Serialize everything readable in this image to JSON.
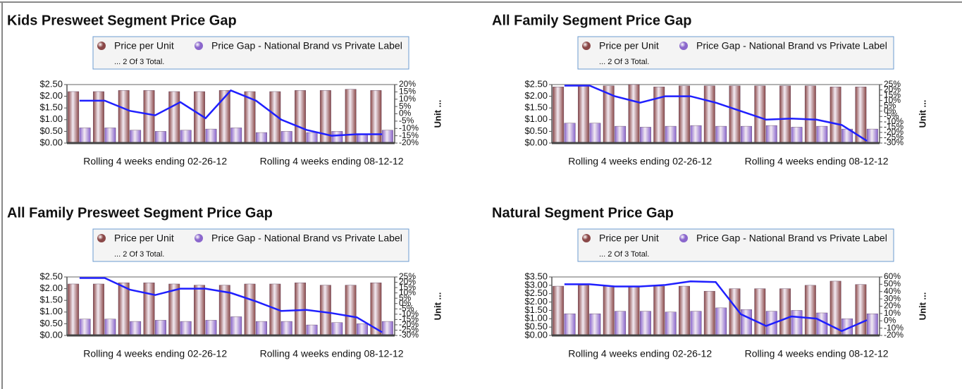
{
  "chart_data": [
    {
      "type": "bar",
      "title": "Kids Presweet Segment Price Gap",
      "legend_note": "... 2 Of 3 Total.",
      "y2label": "Unit ...",
      "categories": [
        null,
        null,
        null,
        "Rolling 4 weeks ending 02-26-12",
        null,
        null,
        null,
        null,
        null,
        null,
        "Rolling 4 weeks ending 08-12-12",
        null,
        null
      ],
      "series": [
        {
          "name": "Price per Unit",
          "color": "#8a4848",
          "values": [
            2.2,
            2.2,
            2.25,
            2.25,
            2.2,
            2.2,
            2.25,
            2.2,
            2.2,
            2.25,
            2.25,
            2.3,
            2.25
          ]
        },
        {
          "name": "Price Gap - National Brand vs Private Label",
          "color": "#8a66cc",
          "values": [
            0.65,
            0.65,
            0.55,
            0.5,
            0.55,
            0.6,
            0.65,
            0.45,
            0.5,
            0.45,
            0.5,
            0.4,
            0.55
          ]
        },
        {
          "type": "line",
          "axis": "y2",
          "color": "#1f1fff",
          "values": [
            9,
            9,
            2,
            -1,
            8,
            -3,
            16,
            9,
            -4,
            -11,
            -15,
            -14,
            -14
          ]
        }
      ],
      "ylim": [
        0,
        2.5
      ],
      "yticks": [
        {
          "value": 0,
          "label": "$0.00"
        },
        {
          "value": 0.5,
          "label": "$0.50"
        },
        {
          "value": 1,
          "label": "$1.00"
        },
        {
          "value": 1.5,
          "label": "$1.50"
        },
        {
          "value": 2,
          "label": "$2.00"
        },
        {
          "value": 2.5,
          "label": "$2.50"
        }
      ],
      "y2lim": [
        -20,
        20
      ],
      "y2ticks": [
        {
          "value": -20,
          "label": "-20%"
        },
        {
          "value": -15,
          "label": "-15%"
        },
        {
          "value": -10,
          "label": "-10%"
        },
        {
          "value": -5,
          "label": "-5%"
        },
        {
          "value": 0,
          "label": "0%"
        },
        {
          "value": 5,
          "label": "5%"
        },
        {
          "value": 10,
          "label": "10%"
        },
        {
          "value": 15,
          "label": "15%"
        },
        {
          "value": 20,
          "label": "20%"
        }
      ]
    },
    {
      "type": "bar",
      "title": "All Family Segment Price Gap",
      "legend_note": "... 2 Of 3 Total.",
      "y2label": "Unit ...",
      "categories": [
        null,
        null,
        null,
        "Rolling 4 weeks ending 02-26-12",
        null,
        null,
        null,
        null,
        null,
        null,
        "Rolling 4 weeks ending 08-12-12",
        null,
        null
      ],
      "series": [
        {
          "name": "Price per Unit",
          "color": "#8a4848",
          "values": [
            2.4,
            2.45,
            2.45,
            2.5,
            2.4,
            2.45,
            2.45,
            2.45,
            2.45,
            2.45,
            2.45,
            2.4,
            2.4
          ]
        },
        {
          "name": "Price Gap - National Brand vs Private Label",
          "color": "#8a66cc",
          "values": [
            0.85,
            0.85,
            0.72,
            0.68,
            0.72,
            0.75,
            0.72,
            0.72,
            0.75,
            0.68,
            0.72,
            0.6,
            0.6
          ]
        },
        {
          "type": "line",
          "axis": "y2",
          "color": "#1f1fff",
          "values": [
            24,
            24,
            14,
            8,
            14,
            14,
            8,
            0,
            -8,
            -7,
            -8,
            -13,
            -28
          ]
        }
      ],
      "ylim": [
        0,
        2.5
      ],
      "yticks": [
        {
          "value": 0,
          "label": "$0.00"
        },
        {
          "value": 0.5,
          "label": "$0.50"
        },
        {
          "value": 1,
          "label": "$1.00"
        },
        {
          "value": 1.5,
          "label": "$1.50"
        },
        {
          "value": 2,
          "label": "$2.00"
        },
        {
          "value": 2.5,
          "label": "$2.50"
        }
      ],
      "y2lim": [
        -30,
        25
      ],
      "y2ticks": [
        {
          "value": -30,
          "label": "-30%"
        },
        {
          "value": -25,
          "label": "-25%"
        },
        {
          "value": -20,
          "label": "-20%"
        },
        {
          "value": -15,
          "label": "-15%"
        },
        {
          "value": -10,
          "label": "-10%"
        },
        {
          "value": -5,
          "label": "-5%"
        },
        {
          "value": 0,
          "label": "0%"
        },
        {
          "value": 5,
          "label": "5%"
        },
        {
          "value": 10,
          "label": "10%"
        },
        {
          "value": 15,
          "label": "15%"
        },
        {
          "value": 20,
          "label": "20%"
        },
        {
          "value": 25,
          "label": "25%"
        }
      ]
    },
    {
      "type": "bar",
      "title": "All Family Presweet Segment Price Gap",
      "legend_note": "... 2 Of 3 Total.",
      "y2label": "Unit ...",
      "categories": [
        null,
        null,
        null,
        "Rolling 4 weeks ending 02-26-12",
        null,
        null,
        null,
        null,
        null,
        null,
        "Rolling 4 weeks ending 08-12-12",
        null,
        null
      ],
      "series": [
        {
          "name": "Price per Unit",
          "color": "#8a4848",
          "values": [
            2.2,
            2.2,
            2.25,
            2.25,
            2.2,
            2.15,
            2.15,
            2.2,
            2.2,
            2.25,
            2.15,
            2.15,
            2.25
          ]
        },
        {
          "name": "Price Gap - National Brand vs Private Label",
          "color": "#8a66cc",
          "values": [
            0.7,
            0.7,
            0.6,
            0.65,
            0.6,
            0.65,
            0.8,
            0.6,
            0.6,
            0.45,
            0.55,
            0.5,
            0.6
          ]
        },
        {
          "type": "line",
          "axis": "y2",
          "color": "#1f1fff",
          "values": [
            24,
            24,
            13,
            8,
            14,
            14,
            10,
            2,
            -7,
            -6,
            -9,
            -13,
            -27
          ]
        }
      ],
      "ylim": [
        0,
        2.5
      ],
      "yticks": [
        {
          "value": 0,
          "label": "$0.00"
        },
        {
          "value": 0.5,
          "label": "$0.50"
        },
        {
          "value": 1,
          "label": "$1.00"
        },
        {
          "value": 1.5,
          "label": "$1.50"
        },
        {
          "value": 2,
          "label": "$2.00"
        },
        {
          "value": 2.5,
          "label": "$2.50"
        }
      ],
      "y2lim": [
        -30,
        25
      ],
      "y2ticks": [
        {
          "value": -30,
          "label": "-30%"
        },
        {
          "value": -25,
          "label": "-25%"
        },
        {
          "value": -20,
          "label": "-20%"
        },
        {
          "value": -15,
          "label": "-15%"
        },
        {
          "value": -10,
          "label": "-10%"
        },
        {
          "value": -5,
          "label": "-5%"
        },
        {
          "value": 0,
          "label": "0%"
        },
        {
          "value": 5,
          "label": "5%"
        },
        {
          "value": 10,
          "label": "10%"
        },
        {
          "value": 15,
          "label": "15%"
        },
        {
          "value": 20,
          "label": "20%"
        },
        {
          "value": 25,
          "label": "25%"
        }
      ]
    },
    {
      "type": "bar",
      "title": "Natural Segment Price Gap",
      "legend_note": "... 2 Of 3 Total.",
      "y2label": "Unit ...",
      "categories": [
        null,
        null,
        null,
        "Rolling 4 weeks ending 02-26-12",
        null,
        null,
        null,
        null,
        null,
        null,
        "Rolling 4 weeks ending 08-12-12",
        null,
        null
      ],
      "series": [
        {
          "name": "Price per Unit",
          "color": "#8a4848",
          "values": [
            2.95,
            3.0,
            2.95,
            2.95,
            2.95,
            2.95,
            2.65,
            2.8,
            2.8,
            2.8,
            3.0,
            3.25,
            3.05
          ]
        },
        {
          "name": "Price Gap - National Brand vs Private Label",
          "color": "#8a66cc",
          "values": [
            1.3,
            1.3,
            1.45,
            1.45,
            1.4,
            1.45,
            1.65,
            1.55,
            1.45,
            1.5,
            1.35,
            1.0,
            1.3
          ]
        },
        {
          "type": "line",
          "axis": "y2",
          "color": "#1f1fff",
          "values": [
            50,
            50,
            47,
            47,
            49,
            54,
            53,
            9,
            -7,
            6,
            3,
            -14,
            1
          ]
        }
      ],
      "ylim": [
        0,
        3.5
      ],
      "yticks": [
        {
          "value": 0,
          "label": "$0.00"
        },
        {
          "value": 0.5,
          "label": "$0.50"
        },
        {
          "value": 1,
          "label": "$1.00"
        },
        {
          "value": 1.5,
          "label": "$1.50"
        },
        {
          "value": 2,
          "label": "$2.00"
        },
        {
          "value": 2.5,
          "label": "$2.50"
        },
        {
          "value": 3,
          "label": "$3.00"
        },
        {
          "value": 3.5,
          "label": "$3.50"
        }
      ],
      "y2lim": [
        -20,
        60
      ],
      "y2ticks": [
        {
          "value": -20,
          "label": "-20%"
        },
        {
          "value": -10,
          "label": "-10%"
        },
        {
          "value": 0,
          "label": "0%"
        },
        {
          "value": 10,
          "label": "10%"
        },
        {
          "value": 20,
          "label": "20%"
        },
        {
          "value": 30,
          "label": "30%"
        },
        {
          "value": 40,
          "label": "40%"
        },
        {
          "value": 50,
          "label": "50%"
        },
        {
          "value": 60,
          "label": "60%"
        }
      ]
    }
  ]
}
